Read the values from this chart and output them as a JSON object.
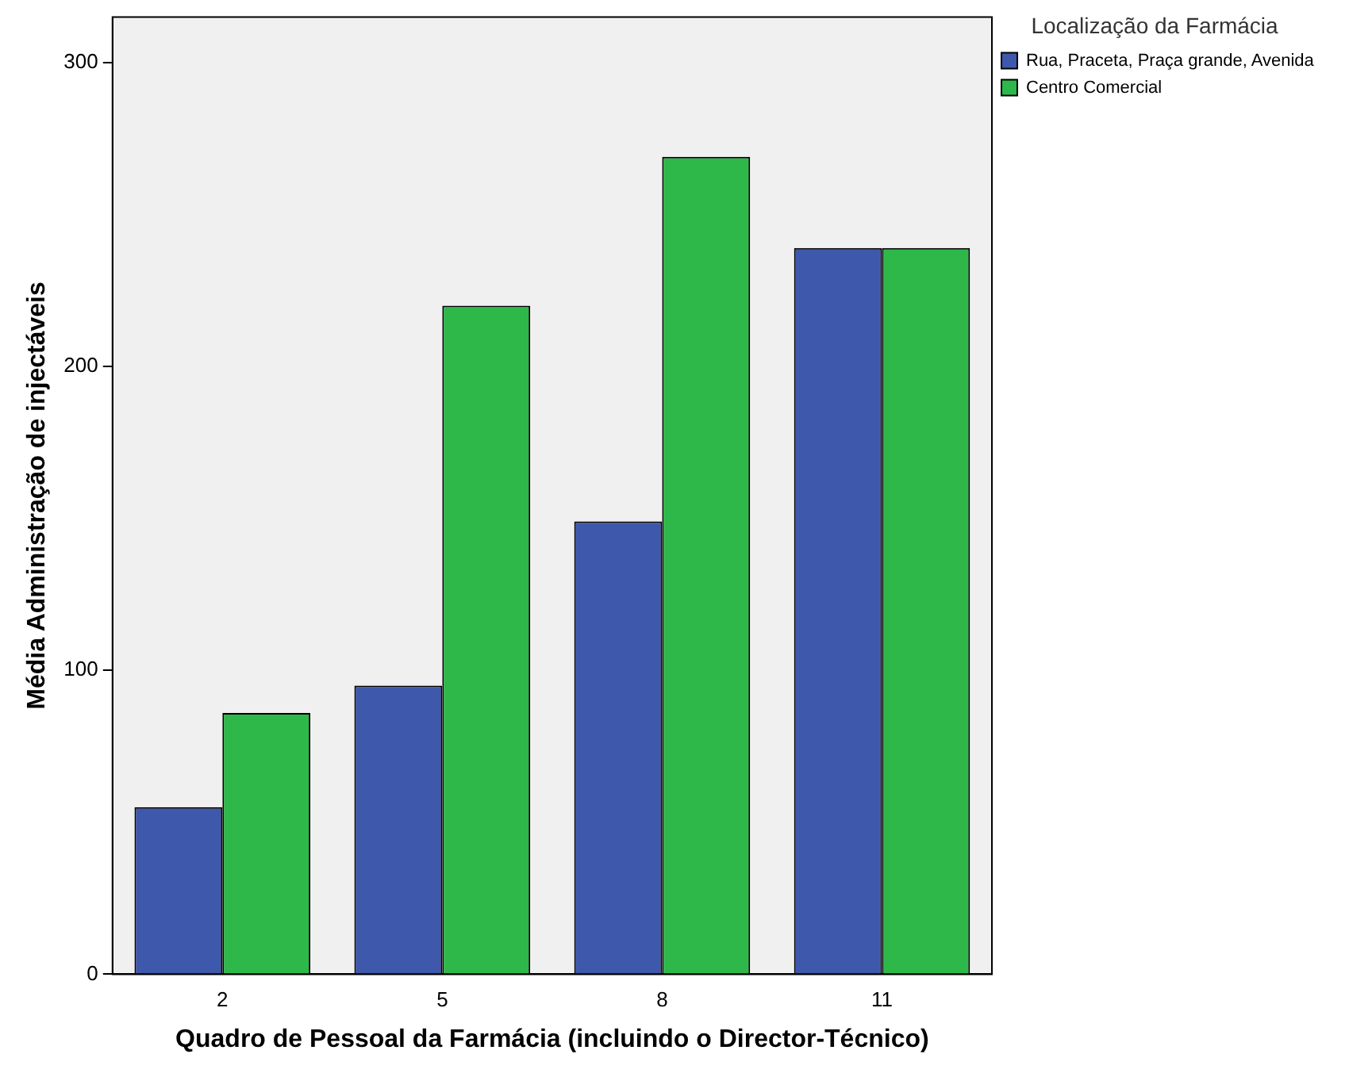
{
  "chart_data": {
    "type": "bar",
    "xlabel": "Quadro de Pessoal da Farmácia (incluindo o Director-Técnico)",
    "ylabel": "Média Administração de injectáveis",
    "legend_title": "Localização da Farmácia",
    "categories": [
      "2",
      "5",
      "8",
      "11"
    ],
    "series": [
      {
        "name": "Rua, Praceta, Praça grande, Avenida",
        "color": "#3e58ac",
        "values": [
          55,
          95,
          149,
          239
        ]
      },
      {
        "name": "Centro Comercial",
        "color": "#2eb84a",
        "values": [
          86,
          220,
          269,
          239
        ]
      }
    ],
    "ylim": [
      0,
      315
    ],
    "yticks": [
      0,
      100,
      200,
      300
    ],
    "grid": false,
    "legend": "top right"
  }
}
